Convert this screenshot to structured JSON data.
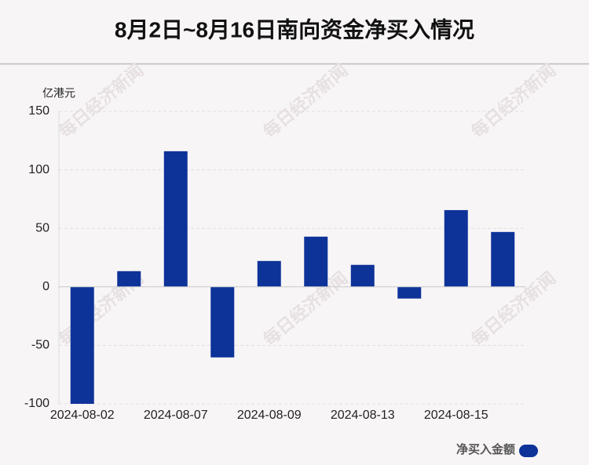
{
  "chart_data": {
    "type": "bar",
    "title": "8月2日~8月16日南向资金净买入情况",
    "y_label": "亿港元",
    "categories": [
      "2024-08-02",
      null,
      "2024-08-07",
      null,
      "2024-08-09",
      null,
      "2024-08-13",
      null,
      "2024-08-15",
      null
    ],
    "series": [
      {
        "name": "净买入金额",
        "color": "#0d3399",
        "values": [
          -100,
          13.4,
          115.9,
          -60.3,
          22.1,
          42.9,
          18.8,
          -10,
          65.6,
          46.9
        ]
      }
    ],
    "ylim": [
      -100,
      150
    ],
    "yticks": [
      -100,
      -50,
      0,
      50,
      100,
      150
    ],
    "grid": true,
    "legend": "bottom-right",
    "watermark": "每日经济新闻"
  }
}
